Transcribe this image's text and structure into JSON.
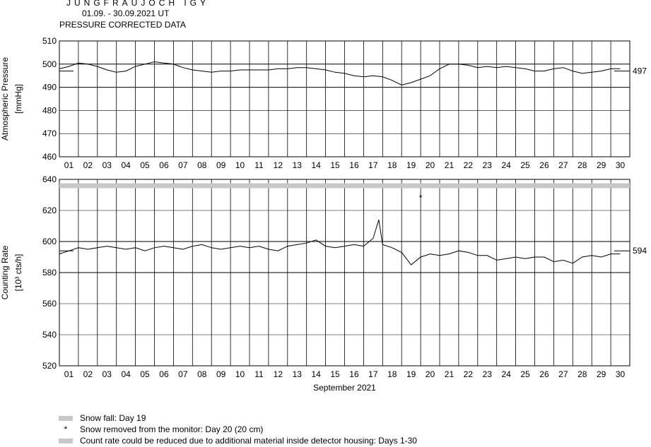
{
  "header": {
    "title": "JUNGFRAUJOCH IGY",
    "date_range": "01.09. - 30.09.2021  UT",
    "subtitle": "PRESSURE CORRECTED DATA"
  },
  "chart_data": [
    {
      "type": "line",
      "name": "pressure",
      "ylabel_line1": "Atmospheric Pressure",
      "ylabel_line2": "[mmHg]",
      "ylim": [
        460,
        510
      ],
      "yticks": [
        460,
        470,
        480,
        490,
        500,
        510
      ],
      "major_gridlines": [
        490,
        500
      ],
      "day_labels": [
        "01",
        "02",
        "03",
        "04",
        "05",
        "06",
        "07",
        "08",
        "09",
        "10",
        "11",
        "12",
        "13",
        "14",
        "15",
        "16",
        "17",
        "18",
        "19",
        "20",
        "21",
        "22",
        "23",
        "24",
        "25",
        "26",
        "27",
        "28",
        "29",
        "30"
      ],
      "reference_value": 497,
      "reference_label": "497",
      "x": [
        1.0,
        1.5,
        2.0,
        2.5,
        3.0,
        3.5,
        4.0,
        4.5,
        5.0,
        5.5,
        6.0,
        6.5,
        7.0,
        7.5,
        8.0,
        8.5,
        9.0,
        9.5,
        10.0,
        10.5,
        11.0,
        11.5,
        12.0,
        12.5,
        13.0,
        13.5,
        14.0,
        14.5,
        15.0,
        15.5,
        16.0,
        16.5,
        17.0,
        17.5,
        18.0,
        18.5,
        19.0,
        19.5,
        20.0,
        20.5,
        21.0,
        21.5,
        22.0,
        22.5,
        23.0,
        23.5,
        24.0,
        24.5,
        25.0,
        25.5,
        26.0,
        26.5,
        27.0,
        27.5,
        28.0,
        28.5,
        29.0,
        29.5,
        30.0,
        30.5
      ],
      "values": [
        498,
        499,
        500.5,
        500,
        499,
        497.5,
        496.5,
        497,
        499,
        500,
        501,
        500.5,
        500,
        498.5,
        497.5,
        497,
        496.5,
        497,
        497,
        497.5,
        497.5,
        497.5,
        497.5,
        498,
        498,
        498.5,
        498.5,
        498,
        497.5,
        496.5,
        496,
        495,
        494.5,
        495,
        494.5,
        493,
        491,
        492,
        493.5,
        495,
        498,
        500,
        500,
        499.5,
        498.5,
        499,
        498.5,
        499,
        498.5,
        498,
        497,
        497,
        498,
        498.5,
        497,
        496,
        496.5,
        497,
        498,
        498
      ]
    },
    {
      "type": "line",
      "name": "counting_rate",
      "ylabel_line1": "Counting Rate",
      "ylabel_line2": "[10³ cts/h]",
      "ylim": [
        520,
        640
      ],
      "yticks": [
        520,
        540,
        560,
        580,
        600,
        620,
        640
      ],
      "major_gridlines": [
        580,
        600
      ],
      "xlabel": "September 2021",
      "day_labels": [
        "01",
        "02",
        "03",
        "04",
        "05",
        "06",
        "07",
        "08",
        "09",
        "10",
        "11",
        "12",
        "13",
        "14",
        "15",
        "16",
        "17",
        "18",
        "19",
        "20",
        "21",
        "22",
        "23",
        "24",
        "25",
        "26",
        "27",
        "28",
        "29",
        "30"
      ],
      "reference_value": 594,
      "reference_label": "594",
      "snow_removed_marker": {
        "day": 20.0,
        "y": 630,
        "symbol": "*"
      },
      "x": [
        1.0,
        1.5,
        2.0,
        2.5,
        3.0,
        3.5,
        4.0,
        4.5,
        5.0,
        5.5,
        6.0,
        6.5,
        7.0,
        7.5,
        8.0,
        8.5,
        9.0,
        9.5,
        10.0,
        10.5,
        11.0,
        11.5,
        12.0,
        12.5,
        13.0,
        13.5,
        14.0,
        14.5,
        15.0,
        15.5,
        16.0,
        16.5,
        17.0,
        17.5,
        17.8,
        18.0,
        18.5,
        19.0,
        19.5,
        20.0,
        20.5,
        21.0,
        21.5,
        22.0,
        22.5,
        23.0,
        23.5,
        24.0,
        24.5,
        25.0,
        25.5,
        26.0,
        26.5,
        27.0,
        27.5,
        28.0,
        28.5,
        29.0,
        29.5,
        30.0,
        30.5
      ],
      "values": [
        592,
        594,
        596,
        595,
        596,
        597,
        596,
        595,
        596,
        594,
        596,
        597,
        596,
        595,
        597,
        598,
        596,
        595,
        596,
        597,
        596,
        597,
        595,
        594,
        597,
        598,
        599,
        601,
        597,
        596,
        597,
        598,
        597,
        602,
        614,
        598,
        596,
        593,
        585,
        590,
        592,
        591,
        592,
        594,
        593,
        591,
        591,
        588,
        589,
        590,
        589,
        590,
        590,
        587,
        588,
        586,
        590,
        591,
        590,
        592,
        592
      ]
    }
  ],
  "legend": [
    {
      "swatch": "bar",
      "color": "#c8c8c8",
      "text": "Snow fall: Day 19"
    },
    {
      "swatch": "star",
      "text": "Snow removed from the monitor: Day 20 (20 cm)"
    },
    {
      "swatch": "bar",
      "color": "#c8c8c8",
      "text": "Count rate could be reduced due to additional material inside detector housing: Days 1-30"
    }
  ]
}
